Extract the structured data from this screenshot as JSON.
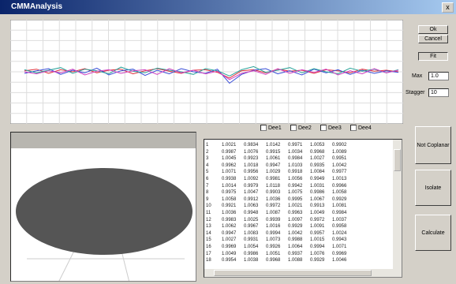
{
  "window": {
    "title": "CMMAnalysis"
  },
  "buttons": {
    "ok": "Ok",
    "cancel": "Cancel",
    "fit": "Fit",
    "coplanar": "Not Coplanar",
    "isolate": "Isolate",
    "calculate": "Calculate"
  },
  "fields": {
    "max": {
      "label": "Max",
      "value": "1.0"
    },
    "stagger": {
      "label": "Stagger",
      "value": "10"
    }
  },
  "checkboxes": [
    "Dee1",
    "Dee2",
    "Dee3",
    "Dee4"
  ],
  "chart": {
    "type": "line",
    "ylim": [
      -1,
      1
    ],
    "series": [
      {
        "color": "#e0303a",
        "values": [
          0.02,
          0.05,
          -0.03,
          0.04,
          0.0,
          0.06,
          -0.02,
          0.03,
          0.05,
          -0.04,
          0.02,
          0.06,
          0.01,
          -0.03,
          0.03,
          0.04,
          -0.01,
          -0.12,
          0.02,
          0.04,
          -0.02,
          0.05,
          0.01,
          0.03,
          -0.03,
          0.04,
          0.02,
          -0.02,
          0.05,
          0.01,
          0.03,
          0.0
        ]
      },
      {
        "color": "#3a4ed8",
        "values": [
          -0.03,
          0.02,
          0.06,
          -0.05,
          0.03,
          -0.02,
          0.07,
          -0.06,
          0.02,
          0.05,
          -0.07,
          0.03,
          -0.04,
          0.06,
          0.0,
          -0.03,
          0.05,
          -0.22,
          -0.05,
          0.03,
          0.06,
          -0.04,
          0.02,
          -0.06,
          0.05,
          -0.02,
          0.04,
          -0.05,
          0.03,
          -0.03,
          0.02,
          -0.01
        ]
      },
      {
        "color": "#2aa39a",
        "values": [
          0.04,
          -0.02,
          0.03,
          0.08,
          -0.03,
          0.05,
          0.02,
          -0.04,
          0.09,
          0.01,
          -0.02,
          0.07,
          0.03,
          0.0,
          -0.05,
          0.06,
          0.02,
          -0.08,
          0.04,
          0.1,
          -0.01,
          0.03,
          0.08,
          -0.02,
          0.06,
          0.0,
          -0.04,
          0.07,
          0.01,
          0.05,
          -0.02,
          0.04
        ]
      },
      {
        "color": "#d040c0",
        "values": [
          0.0,
          -0.04,
          0.02,
          -0.02,
          0.05,
          -0.06,
          0.01,
          0.04,
          -0.03,
          0.02,
          0.04,
          -0.05,
          0.06,
          -0.02,
          0.03,
          -0.04,
          0.01,
          -0.15,
          -0.03,
          0.02,
          -0.05,
          0.06,
          -0.03,
          0.04,
          -0.01,
          0.05,
          -0.06,
          0.02,
          -0.04,
          0.06,
          -0.02,
          0.03
        ]
      }
    ]
  },
  "table": {
    "rows": [
      [
        "1",
        "1.0021",
        "0.9834",
        "1.0142",
        "0.9971",
        "1.0053",
        "0.9902"
      ],
      [
        "2",
        "0.9987",
        "1.0076",
        "0.9915",
        "1.0034",
        "0.9968",
        "1.0089"
      ],
      [
        "3",
        "1.0045",
        "0.9923",
        "1.0061",
        "0.9984",
        "1.0027",
        "0.9951"
      ],
      [
        "4",
        "0.9962",
        "1.0018",
        "0.9947",
        "1.0103",
        "0.9935",
        "1.0042"
      ],
      [
        "5",
        "1.0071",
        "0.9956",
        "1.0029",
        "0.9918",
        "1.0084",
        "0.9977"
      ],
      [
        "6",
        "0.9938",
        "1.0092",
        "0.9981",
        "1.0056",
        "0.9949",
        "1.0013"
      ],
      [
        "7",
        "1.0014",
        "0.9979",
        "1.0118",
        "0.9942",
        "1.0031",
        "0.9966"
      ],
      [
        "8",
        "0.9975",
        "1.0047",
        "0.9903",
        "1.0075",
        "0.9986",
        "1.0058"
      ],
      [
        "9",
        "1.0058",
        "0.9912",
        "1.0036",
        "0.9995",
        "1.0067",
        "0.9929"
      ],
      [
        "10",
        "0.9921",
        "1.0063",
        "0.9972",
        "1.0021",
        "0.9913",
        "1.0081"
      ],
      [
        "11",
        "1.0036",
        "0.9948",
        "1.0087",
        "0.9963",
        "1.0049",
        "0.9984"
      ],
      [
        "12",
        "0.9983",
        "1.0025",
        "0.9939",
        "1.0097",
        "0.9972",
        "1.0037"
      ],
      [
        "13",
        "1.0062",
        "0.9967",
        "1.0016",
        "0.9929",
        "1.0091",
        "0.9958"
      ],
      [
        "14",
        "0.9947",
        "1.0083",
        "0.9994",
        "1.0042",
        "0.9957",
        "1.0024"
      ],
      [
        "15",
        "1.0027",
        "0.9931",
        "1.0073",
        "0.9988",
        "1.0015",
        "0.9943"
      ],
      [
        "16",
        "0.9969",
        "1.0054",
        "0.9926",
        "1.0064",
        "0.9994",
        "1.0071"
      ],
      [
        "17",
        "1.0049",
        "0.9986",
        "1.0051",
        "0.9937",
        "1.0076",
        "0.9969"
      ],
      [
        "18",
        "0.9954",
        "1.0038",
        "0.9968",
        "1.0088",
        "0.9929",
        "1.0046"
      ]
    ]
  }
}
